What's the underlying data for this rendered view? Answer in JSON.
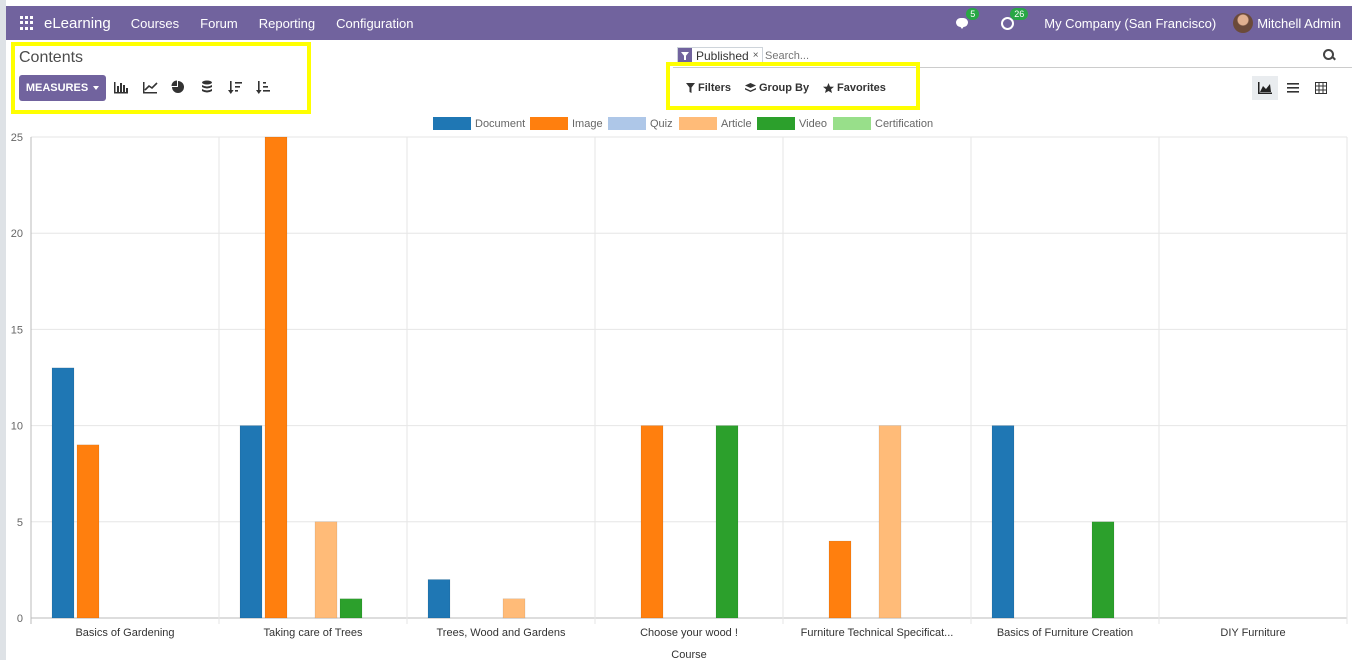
{
  "navbar": {
    "brand": "eLearning",
    "menu": [
      "Courses",
      "Forum",
      "Reporting",
      "Configuration"
    ],
    "messages_count": "5",
    "activities_count": "26",
    "company": "My Company (San Francisco)",
    "user": "Mitchell Admin",
    "color": "#71639e"
  },
  "control_panel": {
    "title": "Contents",
    "measures_label": "MEASURES",
    "facet_label": "Published",
    "facet_close": "×",
    "search_placeholder": "Search...",
    "filters_label": "Filters",
    "group_by_label": "Group By",
    "favorites_label": "Favorites"
  },
  "chart_data": {
    "type": "bar",
    "xlabel": "Course",
    "ylabel": "",
    "ylim": [
      0,
      25
    ],
    "yticks": [
      0,
      5,
      10,
      15,
      20,
      25
    ],
    "legend_position": "top-center",
    "categories": [
      "Basics of Gardening",
      "Taking care of Trees",
      "Trees, Wood and Gardens",
      "Choose your wood !",
      "Furniture Technical Specificat...",
      "Basics of Furniture Creation",
      "DIY Furniture"
    ],
    "series": [
      {
        "name": "Document",
        "color": "#1f77b4",
        "values": [
          13,
          10,
          2,
          0,
          0,
          10,
          0
        ]
      },
      {
        "name": "Image",
        "color": "#ff7f0e",
        "values": [
          9,
          25,
          0,
          10,
          4,
          0,
          0
        ]
      },
      {
        "name": "Quiz",
        "color": "#aec7e8",
        "values": [
          0,
          0,
          0,
          0,
          0,
          0,
          0
        ]
      },
      {
        "name": "Article",
        "color": "#ffbb78",
        "values": [
          0,
          5,
          1,
          0,
          10,
          0,
          0
        ]
      },
      {
        "name": "Video",
        "color": "#2ca02c",
        "values": [
          0,
          1,
          0,
          10,
          0,
          5,
          0
        ]
      },
      {
        "name": "Certification",
        "color": "#98df8a",
        "values": [
          0,
          0,
          0,
          0,
          0,
          0,
          0
        ]
      }
    ]
  }
}
